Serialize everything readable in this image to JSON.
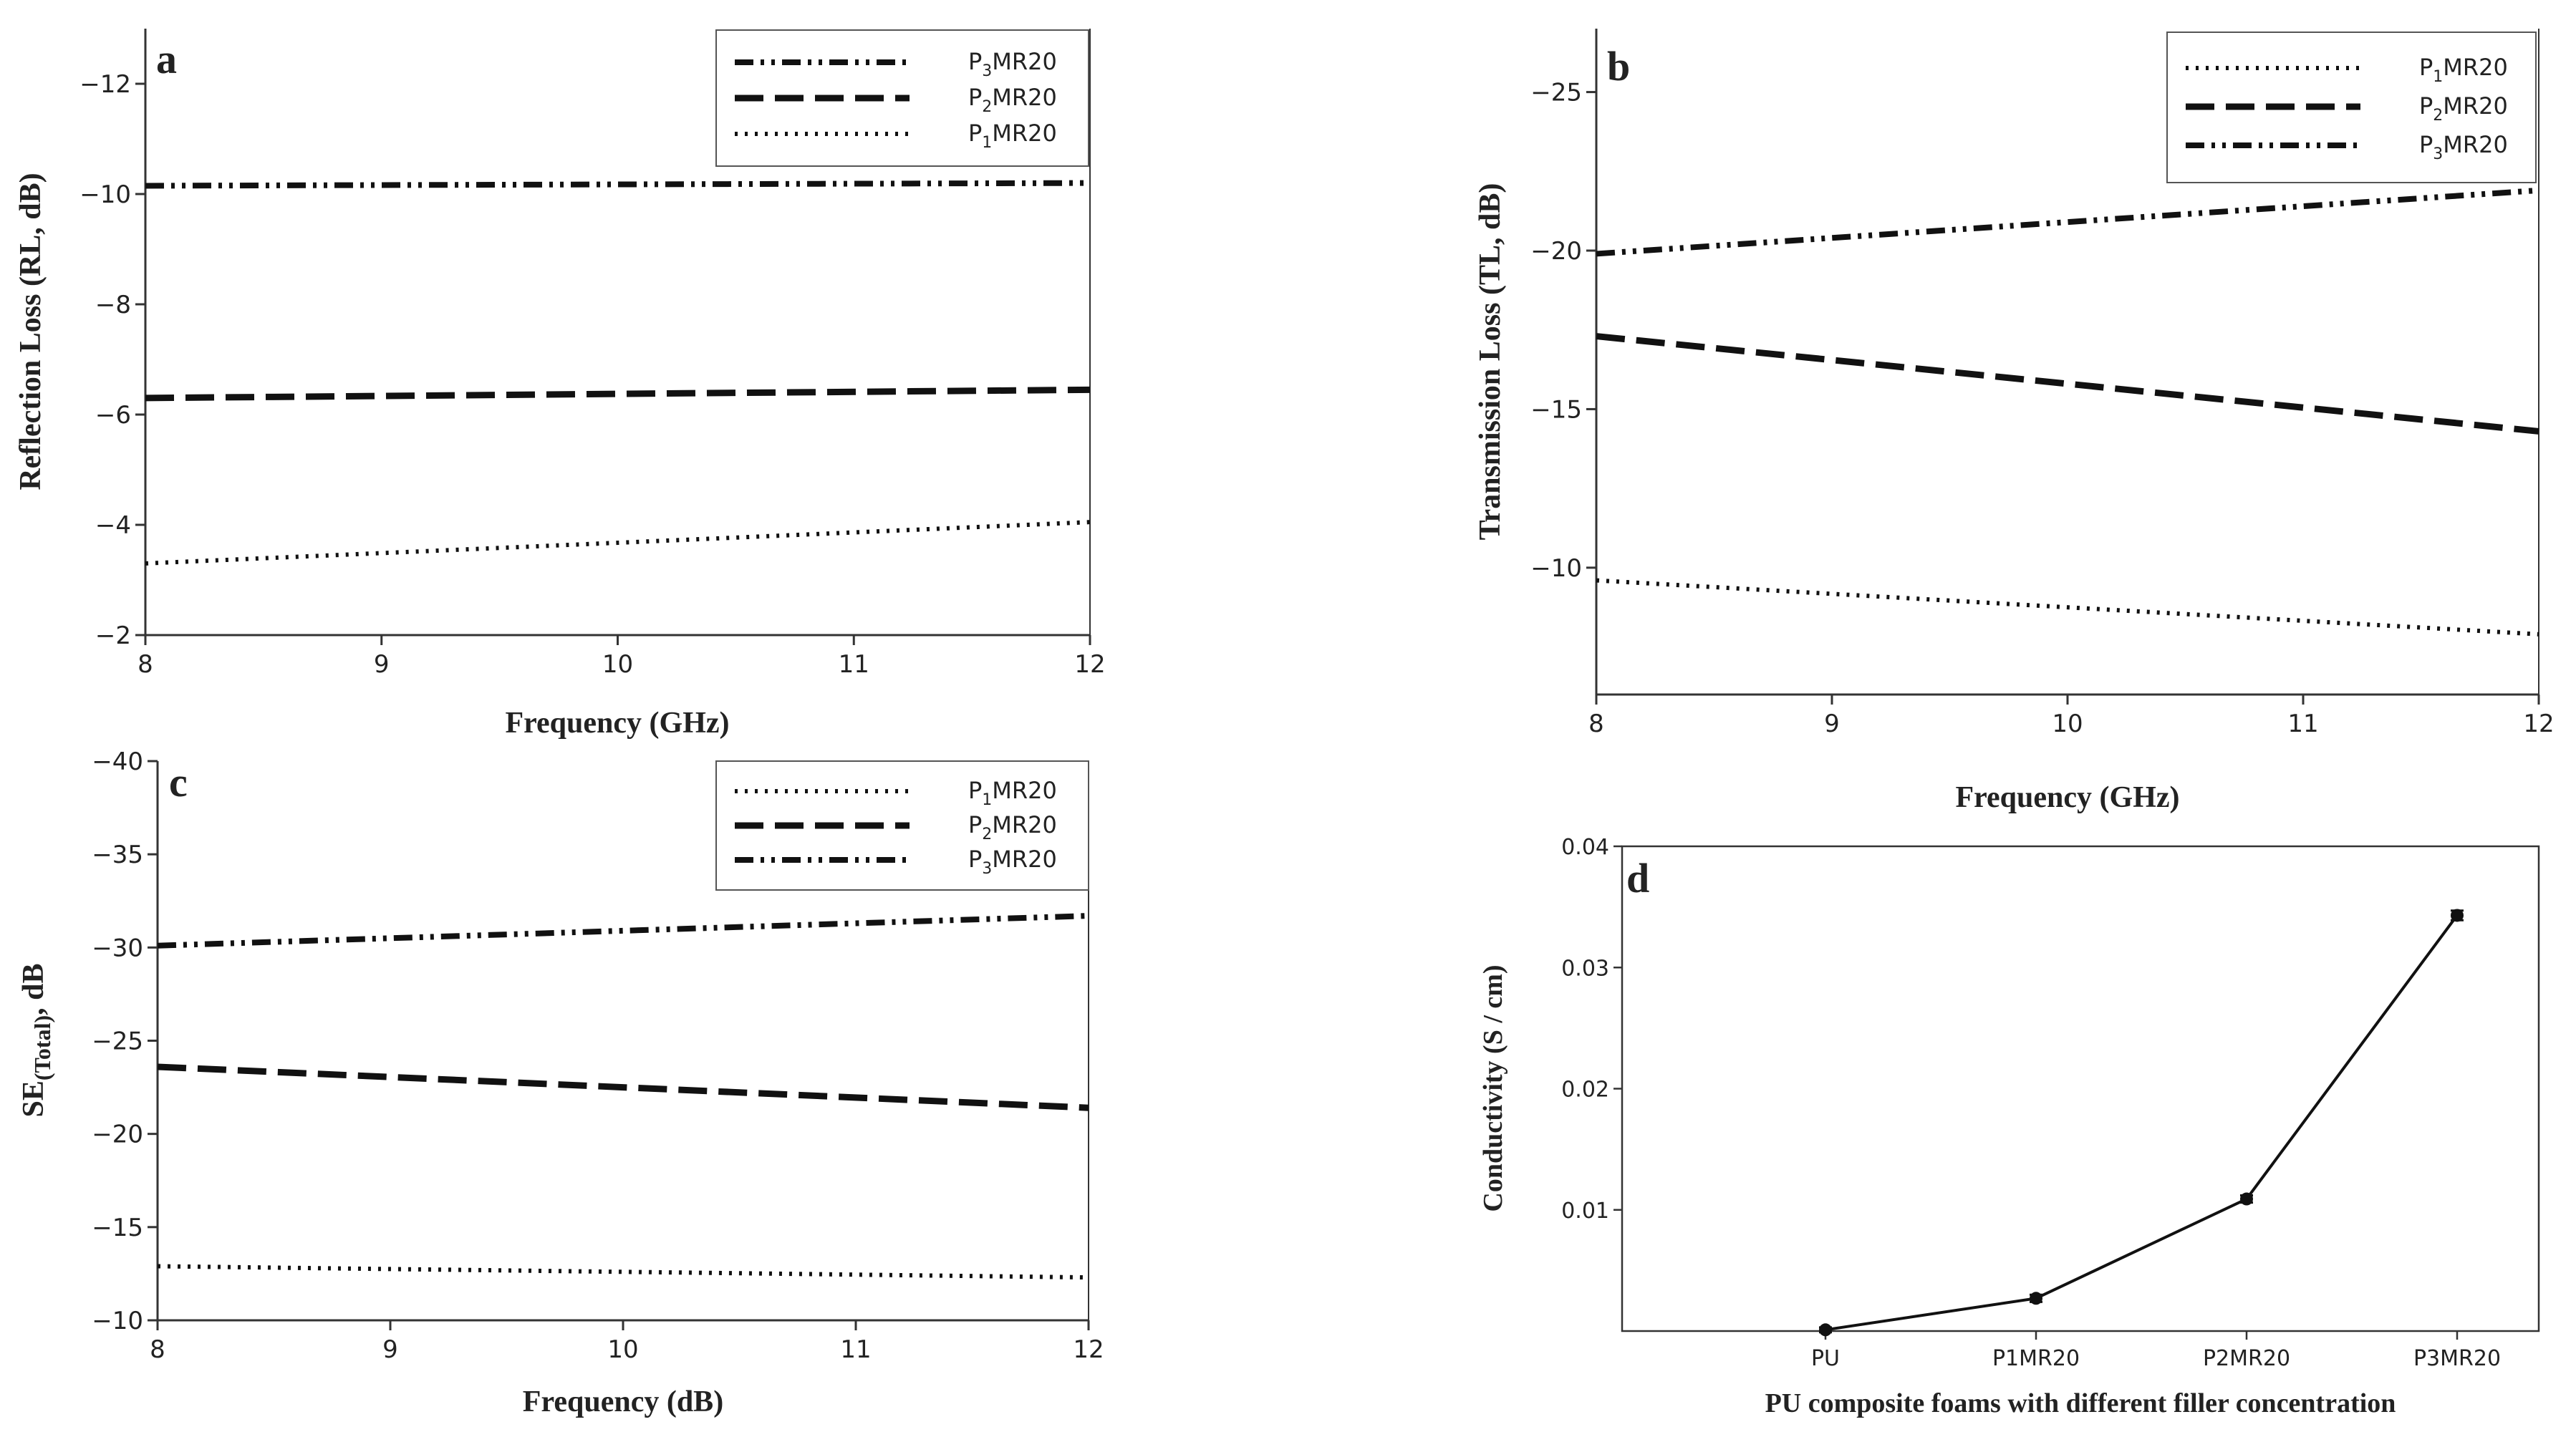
{
  "chart_data": [
    {
      "panel": "a",
      "type": "line",
      "title": "",
      "xlabel": "Frequency (GHz)",
      "ylabel": "Reflection Loss (RL, dB)",
      "xlim": [
        8,
        12
      ],
      "ylim": [
        -2,
        -13
      ],
      "xticks": [
        "8",
        "9",
        "10",
        "11",
        "12"
      ],
      "yticks": [
        "−2",
        "−4",
        "−6",
        "−8",
        "−10",
        "−12"
      ],
      "legend_position": "top-right",
      "series": [
        {
          "name": "P3MR20",
          "name_base": "P",
          "name_sub": "3",
          "name_rest": "MR20",
          "style": "dashdotdot",
          "x": [
            8,
            12
          ],
          "y": [
            -10.15,
            -10.2
          ]
        },
        {
          "name": "P2MR20",
          "name_base": "P",
          "name_sub": "2",
          "name_rest": "MR20",
          "style": "dash",
          "x": [
            8,
            12
          ],
          "y": [
            -6.3,
            -6.45
          ]
        },
        {
          "name": "P1MR20",
          "name_base": "P",
          "name_sub": "1",
          "name_rest": "MR20",
          "style": "dot",
          "x": [
            8,
            12
          ],
          "y": [
            -3.3,
            -4.05
          ]
        }
      ]
    },
    {
      "panel": "b",
      "type": "line",
      "title": "",
      "xlabel": "Frequency (GHz)",
      "ylabel": "Transmission Loss (TL, dB)",
      "xlim": [
        8,
        12
      ],
      "ylim": [
        -6,
        -27
      ],
      "xticks": [
        "8",
        "9",
        "10",
        "11",
        "12"
      ],
      "yticks": [
        "−10",
        "−15",
        "−20",
        "−25"
      ],
      "legend_position": "top-right",
      "series": [
        {
          "name": "P1MR20",
          "name_base": "P",
          "name_sub": "1",
          "name_rest": "MR20",
          "style": "dot",
          "x": [
            8,
            12
          ],
          "y": [
            -9.6,
            -7.9
          ]
        },
        {
          "name": "P2MR20",
          "name_base": "P",
          "name_sub": "2",
          "name_rest": "MR20",
          "style": "dash",
          "x": [
            8,
            12
          ],
          "y": [
            -17.3,
            -14.3
          ]
        },
        {
          "name": "P3MR20",
          "name_base": "P",
          "name_sub": "3",
          "name_rest": "MR20",
          "style": "dashdotdot",
          "x": [
            8,
            12
          ],
          "y": [
            -19.9,
            -21.9
          ]
        }
      ]
    },
    {
      "panel": "c",
      "type": "line",
      "title": "",
      "xlabel": "Frequency (dB)",
      "ylabel": "SE(Total), dB",
      "ylabel_base": "SE",
      "ylabel_sub": "(Total)",
      "ylabel_rest": ", dB",
      "xlim": [
        8,
        12
      ],
      "ylim": [
        -10,
        -40
      ],
      "xticks": [
        "8",
        "9",
        "10",
        "11",
        "12"
      ],
      "yticks": [
        "−10",
        "−15",
        "−20",
        "−25",
        "−30",
        "−35",
        "−40"
      ],
      "legend_position": "top-right",
      "series": [
        {
          "name": "P1MR20",
          "name_base": "P",
          "name_sub": "1",
          "name_rest": "MR20",
          "style": "dot",
          "x": [
            8,
            12
          ],
          "y": [
            -12.9,
            -12.3
          ]
        },
        {
          "name": "P2MR20",
          "name_base": "P",
          "name_sub": "2",
          "name_rest": "MR20",
          "style": "dash",
          "x": [
            8,
            12
          ],
          "y": [
            -23.6,
            -21.4
          ]
        },
        {
          "name": "P3MR20",
          "name_base": "P",
          "name_sub": "3",
          "name_rest": "MR20",
          "style": "dashdotdot",
          "x": [
            8,
            12
          ],
          "y": [
            -30.1,
            -31.7
          ]
        }
      ]
    },
    {
      "panel": "d",
      "type": "line",
      "title": "",
      "xlabel": "PU composite foams with different filler concentration",
      "ylabel": "Conductivity (S / cm)",
      "categories": [
        "PU",
        "P1MR20",
        "P2MR20",
        "P3MR20"
      ],
      "ylim": [
        0,
        0.04
      ],
      "yticks": [
        "0.01",
        "0.02",
        "0.03",
        "0.04"
      ],
      "ytick_values": [
        0.01,
        0.02,
        0.03,
        0.04
      ],
      "series": [
        {
          "name": "Conductivity",
          "values": [
            0.0001,
            0.0027,
            0.0109,
            0.0343
          ],
          "error": [
            0.0002,
            0.0003,
            0.0003,
            0.0004
          ]
        }
      ]
    }
  ]
}
